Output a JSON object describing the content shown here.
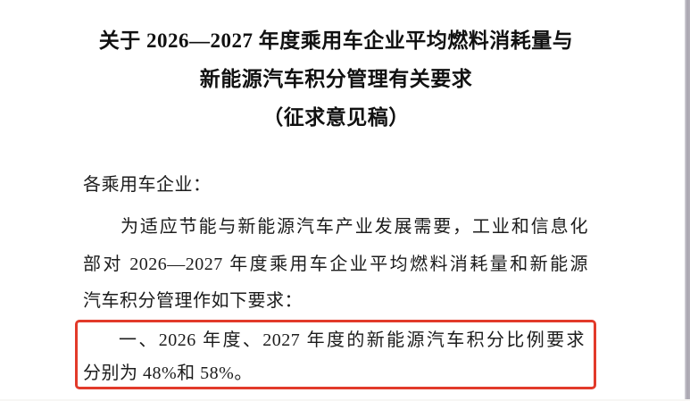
{
  "page": {
    "background_color": "#ffffff",
    "right_edge_color": "#a9a6b0",
    "text_color": "#1c1c1c"
  },
  "document": {
    "title_lines": [
      "关于 2026—2027 年度乘用车企业平均燃料消耗量与",
      "新能源汽车积分管理有关要求",
      "（征求意见稿）"
    ],
    "salutation": "各乘用车企业：",
    "paragraph_lines": [
      "为适应节能与新能源汽车产业发展需要，工业和信息化",
      "部对 2026—2027 年度乘用车企业平均燃料消耗量和新能源",
      "汽车积分管理作如下要求："
    ],
    "highlight": {
      "box_color": "#e23a2a",
      "lines": [
        "一、2026 年度、2027 年度的新能源汽车积分比例要求",
        "分别为 48%和 58%。"
      ]
    }
  }
}
